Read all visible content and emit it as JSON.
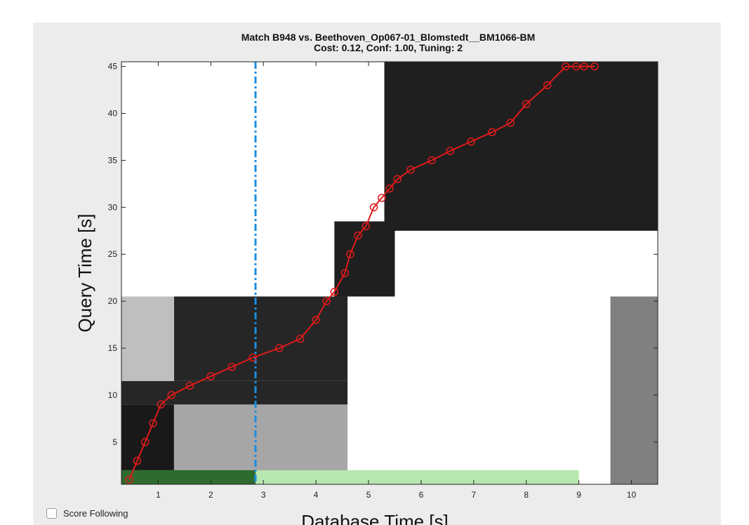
{
  "chart_data": {
    "type": "heatmap",
    "title": "Match B948 vs. Beethoven_Op067-01_Blomstedt__BM1066-BM",
    "subtitle": "Cost: 0.12, Conf: 1.00, Tuning: 2",
    "xlabel": "Database Time [s]",
    "ylabel": "Query Time [s]",
    "xlim": [
      0.3,
      10.5
    ],
    "ylim": [
      0.5,
      45.5
    ],
    "xticks": [
      1,
      2,
      3,
      4,
      5,
      6,
      7,
      8,
      9,
      10
    ],
    "yticks": [
      5,
      10,
      15,
      20,
      25,
      30,
      35,
      40,
      45
    ],
    "cursor_x": 2.85,
    "cursor_color": "#1a8fe0",
    "path_color": "#e01a1a",
    "progress_bar": {
      "x_start": 0.3,
      "x_end": 9.0,
      "played_until": 2.85,
      "color_played": "#2e6b2e",
      "color_pending": "#b8e6b0"
    },
    "alignment_path": {
      "x": [
        0.45,
        0.6,
        0.75,
        0.9,
        1.05,
        1.25,
        1.6,
        2.0,
        2.4,
        2.8,
        3.3,
        3.7,
        4.0,
        4.2,
        4.35,
        4.55,
        4.65,
        4.8,
        4.95,
        5.1,
        5.25,
        5.4,
        5.55,
        5.8,
        6.2,
        6.55,
        6.95,
        7.35,
        7.7,
        8.0,
        8.4,
        8.75,
        8.95,
        9.1,
        9.3
      ],
      "y": [
        1,
        3,
        5,
        7,
        9,
        10,
        11,
        12,
        13,
        14,
        15,
        16,
        18,
        20,
        21,
        23,
        25,
        27,
        28,
        30,
        31,
        32,
        33,
        34,
        35,
        36,
        37,
        38,
        39,
        41,
        43,
        45,
        45,
        45,
        45
      ]
    },
    "blocks": [
      {
        "x0": 0.3,
        "x1": 1.3,
        "y0": 0.5,
        "y1": 9,
        "value": 0.9
      },
      {
        "x0": 1.3,
        "x1": 4.6,
        "y0": 0.5,
        "y1": 9,
        "value": 0.35
      },
      {
        "x0": 0.3,
        "x1": 4.6,
        "y0": 9,
        "y1": 11.5,
        "value": 0.85
      },
      {
        "x0": 1.3,
        "x1": 4.6,
        "y0": 11.5,
        "y1": 20.5,
        "value": 0.85
      },
      {
        "x0": 0.3,
        "x1": 1.3,
        "y0": 11.5,
        "y1": 20.5,
        "value": 0.25
      },
      {
        "x0": 4.35,
        "x1": 5.5,
        "y0": 20.5,
        "y1": 28.5,
        "value": 0.88
      },
      {
        "x0": 5.3,
        "x1": 10.5,
        "y0": 27.5,
        "y1": 45.5,
        "value": 0.88
      },
      {
        "x0": 9.6,
        "x1": 10.5,
        "y0": 0.5,
        "y1": 20.5,
        "value": 0.5
      }
    ],
    "grid": false
  },
  "controls": {
    "score_following_label": "Score Following",
    "score_following_checked": false
  }
}
